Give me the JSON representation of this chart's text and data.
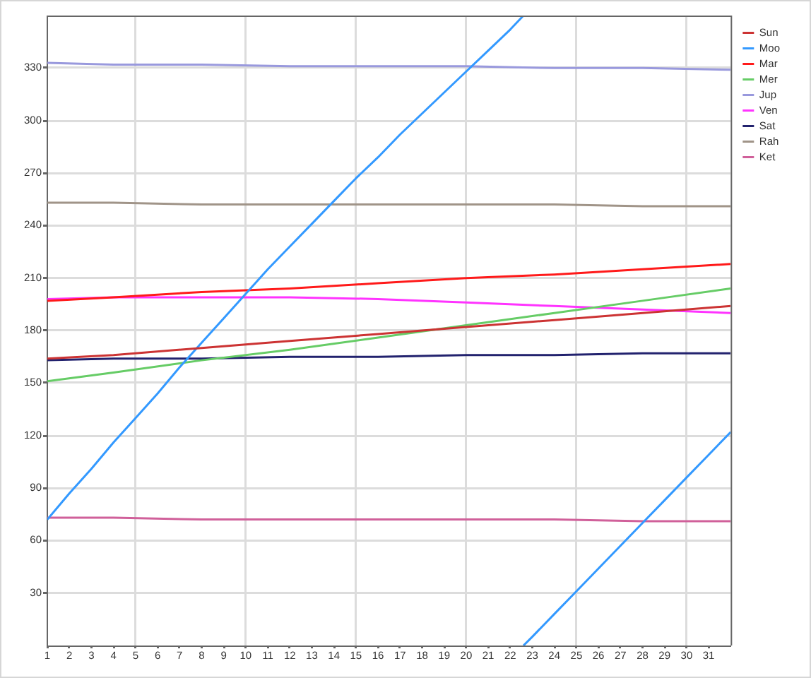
{
  "chart_data": {
    "type": "line",
    "x": [
      1,
      4,
      8,
      12,
      16,
      20,
      24,
      28,
      32
    ],
    "xlim": [
      1,
      32
    ],
    "xticks": [
      1,
      2,
      3,
      4,
      5,
      6,
      7,
      8,
      9,
      10,
      11,
      12,
      13,
      14,
      15,
      16,
      17,
      18,
      19,
      20,
      21,
      22,
      23,
      24,
      25,
      26,
      27,
      28,
      29,
      30,
      31
    ],
    "ylim": [
      0,
      360
    ],
    "yticks": [
      30,
      60,
      90,
      120,
      150,
      180,
      210,
      240,
      270,
      300,
      330
    ],
    "grid": true,
    "legend": "top right",
    "series": [
      {
        "name": "Sun",
        "color": "#cc3333",
        "values": [
          164,
          166,
          170,
          174,
          178,
          182,
          186,
          190,
          194
        ]
      },
      {
        "name": "Moo",
        "color": "#3399ff",
        "x": [
          1,
          2,
          3,
          4,
          5,
          6,
          7,
          8,
          9,
          10,
          11,
          12,
          13,
          14,
          15,
          16,
          17,
          18,
          19,
          20,
          21,
          22,
          22.6,
          null,
          22.6,
          23,
          24,
          25,
          26,
          27,
          28,
          29,
          30,
          31,
          32
        ],
        "values": [
          72,
          87,
          101,
          116,
          130,
          144,
          159,
          173,
          187,
          201,
          215,
          228,
          241,
          254,
          267,
          279,
          292,
          304,
          316,
          328,
          340,
          352,
          360,
          null,
          0,
          5,
          18,
          31,
          44,
          57,
          70,
          83,
          96,
          109,
          122
        ]
      },
      {
        "name": "Mar",
        "color": "#ff1a1a",
        "values": [
          197,
          199,
          202,
          204,
          207,
          210,
          212,
          215,
          218
        ]
      },
      {
        "name": "Mer",
        "color": "#66cc66",
        "values": [
          151,
          156,
          163,
          169,
          176,
          183,
          190,
          197,
          204
        ]
      },
      {
        "name": "Jup",
        "color": "#9999dd",
        "values": [
          333,
          332,
          332,
          331,
          331,
          331,
          330,
          330,
          329
        ]
      },
      {
        "name": "Ven",
        "color": "#ff33ff",
        "values": [
          198,
          199,
          199,
          199,
          198,
          196,
          194,
          192,
          190
        ]
      },
      {
        "name": "Sat",
        "color": "#22226e",
        "values": [
          163,
          164,
          164,
          165,
          165,
          166,
          166,
          167,
          167
        ]
      },
      {
        "name": "Rah",
        "color": "#a09488",
        "values": [
          253,
          253,
          252,
          252,
          252,
          252,
          252,
          251,
          251
        ]
      },
      {
        "name": "Ket",
        "color": "#d0609a",
        "values": [
          73,
          73,
          72,
          72,
          72,
          72,
          72,
          71,
          71
        ]
      }
    ]
  }
}
